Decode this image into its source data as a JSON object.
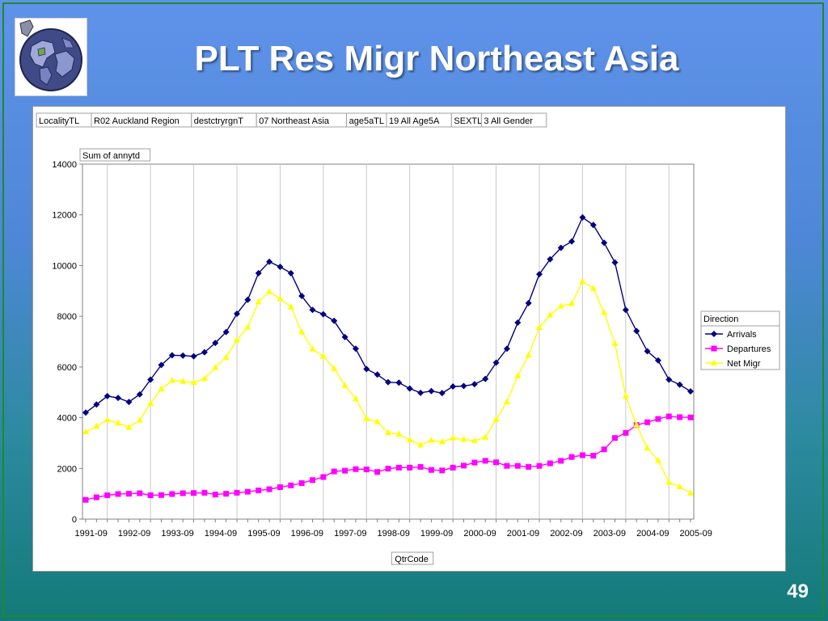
{
  "slide": {
    "title": "PLT Res Migr Northeast Asia",
    "page_number": "49",
    "logo_icon": "globe-map-icon"
  },
  "filters": [
    {
      "field": "LocalityTL",
      "value": "R02 Auckland Region"
    },
    {
      "field": "destctryrgnT",
      "value": "07 Northeast Asia"
    },
    {
      "field": "age5aTL",
      "value": "19 All Age5A"
    },
    {
      "field": "SEXTL",
      "value": "3 All Gender"
    }
  ],
  "chart_data": {
    "type": "line",
    "data_field": "Sum of annytd",
    "xlabel": "QtrCode",
    "legend_title": "Direction",
    "legend_position": "right",
    "grid": "vertical",
    "ylim": [
      0,
      14000
    ],
    "yticks": [
      "0",
      "2000",
      "4000",
      "6000",
      "8000",
      "10000",
      "12000",
      "14000"
    ],
    "x_tick_labels": [
      "1991-09",
      "1992-09",
      "1993-09",
      "1994-09",
      "1995-09",
      "1996-09",
      "1997-09",
      "1998-09",
      "1999-09",
      "2000-09",
      "2001-09",
      "2002-09",
      "2003-09",
      "2004-09",
      "2005-09"
    ],
    "x_start": "1991-09",
    "points_per_label": 4,
    "series": [
      {
        "name": "Arrivals",
        "color": "#000080",
        "marker": "diamond",
        "values": [
          4200,
          4520,
          4850,
          4780,
          4620,
          4920,
          5500,
          6080,
          6460,
          6450,
          6420,
          6580,
          6950,
          7380,
          8100,
          8650,
          9700,
          10150,
          9950,
          9700,
          8800,
          8250,
          8080,
          7820,
          7180,
          6720,
          5920,
          5700,
          5400,
          5380,
          5150,
          4980,
          5050,
          4970,
          5230,
          5250,
          5320,
          5530,
          6170,
          6720,
          7750,
          8520,
          9660,
          10250,
          10700,
          10950,
          11900,
          11600,
          10900,
          10120,
          8250,
          7420,
          6620,
          6260,
          5500,
          5300,
          5040
        ]
      },
      {
        "name": "Departures",
        "color": "#ff00ff",
        "marker": "square",
        "values": [
          760,
          860,
          940,
          990,
          1000,
          1020,
          940,
          950,
          990,
          1020,
          1030,
          1040,
          970,
          1000,
          1040,
          1080,
          1130,
          1180,
          1260,
          1330,
          1420,
          1540,
          1660,
          1880,
          1910,
          1970,
          1960,
          1860,
          1990,
          2030,
          2030,
          2060,
          1940,
          1920,
          2030,
          2110,
          2230,
          2300,
          2240,
          2100,
          2100,
          2060,
          2100,
          2200,
          2300,
          2450,
          2520,
          2500,
          2750,
          3200,
          3400,
          3710,
          3820,
          3950,
          4050,
          4020,
          4010
        ]
      },
      {
        "name": "Net Migr",
        "color": "#ffff00",
        "marker": "triangle",
        "values": [
          3440,
          3660,
          3910,
          3790,
          3620,
          3900,
          4560,
          5130,
          5470,
          5430,
          5390,
          5540,
          5980,
          6380,
          7060,
          7570,
          8570,
          8970,
          8690,
          8370,
          7380,
          6710,
          6420,
          5940,
          5270,
          4750,
          3960,
          3840,
          3410,
          3350,
          3120,
          2920,
          3110,
          3050,
          3200,
          3140,
          3090,
          3230,
          3930,
          4620,
          5650,
          6460,
          7560,
          8050,
          8400,
          8500,
          9380,
          9100,
          8150,
          6920,
          4850,
          3710,
          2800,
          2310,
          1450,
          1280,
          1030
        ]
      }
    ]
  }
}
